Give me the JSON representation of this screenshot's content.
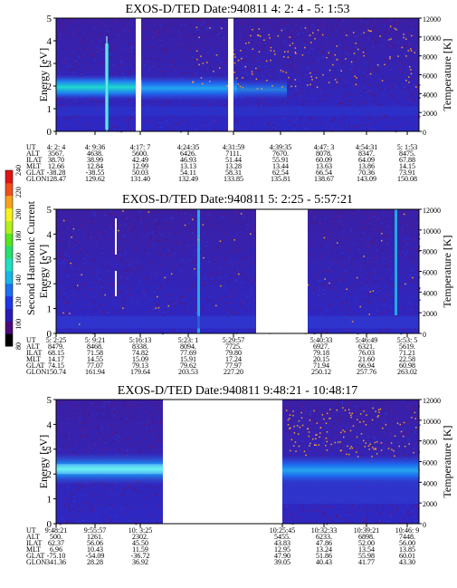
{
  "instrument_row_labels": [
    "UT",
    "ALT",
    "ILAT",
    "MLT",
    "GLAT",
    "GLON"
  ],
  "colorbar": {
    "label": "Second Harmonic Current",
    "ticks": [
      80,
      100,
      120,
      140,
      160,
      180,
      200,
      220,
      240
    ],
    "colors": [
      "#000000",
      "#4b0a7a",
      "#2a1bb8",
      "#1e36e6",
      "#1d6ff0",
      "#17b6e8",
      "#1fe0c0",
      "#26e070",
      "#57e61e",
      "#b4f01a",
      "#f6f21a",
      "#f6a21a",
      "#ef4f1a",
      "#e01414"
    ]
  },
  "chart_data": [
    {
      "type": "heatmap",
      "title": "EXOS-D/TED   Date:940811   4: 2: 4 - 5: 1:53",
      "ylabel": "Energy [eV]",
      "y2label": "Temperature [K]",
      "ylim": [
        0,
        5
      ],
      "y2lim": [
        0,
        12000
      ],
      "yticks": [
        "0",
        "1",
        "2",
        "3",
        "4",
        "5"
      ],
      "y2ticks": [
        "0",
        "2000",
        "4000",
        "6000",
        "8000",
        "10000",
        "12000"
      ],
      "ephemeris": [
        {
          "UT": "4: 2: 4",
          "ALT": "3567.",
          "ILAT": "38.70",
          "MLT": "12.66",
          "GLAT": "-38.28",
          "GLON": "128.47"
        },
        {
          "UT": "4: 9:36",
          "ALT": "4638.",
          "ILAT": "38.99",
          "MLT": "12.84",
          "GLAT": "-38.55",
          "GLON": "129.62"
        },
        {
          "UT": "4:17: 7",
          "ALT": "5600.",
          "ILAT": "42.49",
          "MLT": "12.99",
          "GLAT": "50.03",
          "GLON": "131.40"
        },
        {
          "UT": "4:24:35",
          "ALT": "6426.",
          "ILAT": "46.93",
          "MLT": "13.13",
          "GLAT": "54.11",
          "GLON": "132.49"
        },
        {
          "UT": "4:31:59",
          "ALT": "7111.",
          "ILAT": "51.44",
          "MLT": "13.28",
          "GLAT": "58.31",
          "GLON": "133.85"
        },
        {
          "UT": "4:39:35",
          "ALT": "7670.",
          "ILAT": "55.91",
          "MLT": "13.44",
          "GLAT": "62.54",
          "GLON": "135.81"
        },
        {
          "UT": "4:47: 3",
          "ALT": "8078.",
          "ILAT": "60.09",
          "MLT": "13.63",
          "GLAT": "66.54",
          "GLON": "138.67"
        },
        {
          "UT": "4:54:31",
          "ALT": "8347.",
          "ILAT": "64.09",
          "MLT": "13.86",
          "GLAT": "70.36",
          "GLON": "143.09"
        },
        {
          "UT": "5: 1:53",
          "ALT": "8475.",
          "ILAT": "67.88",
          "MLT": "14.15",
          "GLAT": "73.91",
          "GLON": "150.08"
        }
      ]
    },
    {
      "type": "heatmap",
      "title": "EXOS-D/TED   Date:940811   5: 2:25 - 5:57:21",
      "ylabel": "Energy [eV]",
      "y2label": "Temperature [K]",
      "ylim": [
        0,
        5
      ],
      "y2lim": [
        0,
        12000
      ],
      "yticks": [
        "0",
        "1",
        "2",
        "3",
        "4",
        "5"
      ],
      "y2ticks": [
        "0",
        "2000",
        "4000",
        "6000",
        "8000",
        "10000",
        "12000"
      ],
      "ephemeris": [
        {
          "UT": "5: 2:25",
          "ALT": "8479.",
          "ILAT": "68.15",
          "MLT": "14.17",
          "GLAT": "74.15",
          "GLON": "150.74"
        },
        {
          "UT": "5: 9:21",
          "ALT": "8468.",
          "ILAT": "71.58",
          "MLT": "14.55",
          "GLAT": "77.07",
          "GLON": "161.94"
        },
        {
          "UT": "5:16:13",
          "ALT": "8338.",
          "ILAT": "74.82",
          "MLT": "15.09",
          "GLAT": "79.13",
          "GLON": "179.64"
        },
        {
          "UT": "5:23: 1",
          "ALT": "8094.",
          "ILAT": "77.69",
          "MLT": "15.91",
          "GLAT": "79.62",
          "GLON": "203.53"
        },
        {
          "UT": "5:29:57",
          "ALT": "7725.",
          "ILAT": "79.80",
          "MLT": "17.24",
          "GLAT": "77.97",
          "GLON": "227.20"
        },
        {
          "UT": "5:40:33",
          "ALT": "6927.",
          "ILAT": "79.18",
          "MLT": "20.15",
          "GLAT": "71.94",
          "GLON": "250.12"
        },
        {
          "UT": "5:46:49",
          "ALT": "6321.",
          "ILAT": "76.03",
          "MLT": "21.60",
          "GLAT": "66.94",
          "GLON": "257.76"
        },
        {
          "UT": "5:53: 5",
          "ALT": "5619.",
          "ILAT": "71.21",
          "MLT": "22.58",
          "GLAT": "60.98",
          "GLON": "263.02"
        }
      ]
    },
    {
      "type": "heatmap",
      "title": "EXOS-D/TED   Date:940811   9:48:21 - 10:48:17",
      "ylabel": "Energy [eV]",
      "y2label": "Temperature [K]",
      "ylim": [
        0,
        5
      ],
      "y2lim": [
        0,
        12000
      ],
      "yticks": [
        "0",
        "1",
        "2",
        "3",
        "4",
        "5"
      ],
      "y2ticks": [
        "0",
        "2000",
        "4000",
        "6000",
        "8000",
        "10000",
        "12000"
      ],
      "ephemeris": [
        {
          "UT": "9:48:21",
          "ALT": "500.",
          "ILAT": "62.37",
          "MLT": "6.96",
          "GLAT": "-75.10",
          "GLON": "341.36"
        },
        {
          "UT": "9:55:57",
          "ALT": "1261.",
          "ILAT": "56.06",
          "MLT": "10.43",
          "GLAT": "-54.09",
          "GLON": "28.28"
        },
        {
          "UT": "10: 3:25",
          "ALT": "2302.",
          "ILAT": "45.50",
          "MLT": "11.59",
          "GLAT": "-36.72",
          "GLON": "36.92"
        },
        {
          "UT": "10:25:45",
          "ALT": "5455.",
          "ILAT": "43.83",
          "MLT": "12.95",
          "GLAT": "47.90",
          "GLON": "39.05"
        },
        {
          "UT": "10:32:33",
          "ALT": "6233.",
          "ILAT": "47.86",
          "MLT": "13.24",
          "GLAT": "51.86",
          "GLON": "40.43"
        },
        {
          "UT": "10:39:21",
          "ALT": "6898.",
          "ILAT": "52.00",
          "MLT": "13.54",
          "GLAT": "55.98",
          "GLON": "41.77"
        },
        {
          "UT": "10:46: 9",
          "ALT": "7448.",
          "ILAT": "56.00",
          "MLT": "13.85",
          "GLAT": "60.01",
          "GLON": "43.30"
        }
      ]
    }
  ]
}
